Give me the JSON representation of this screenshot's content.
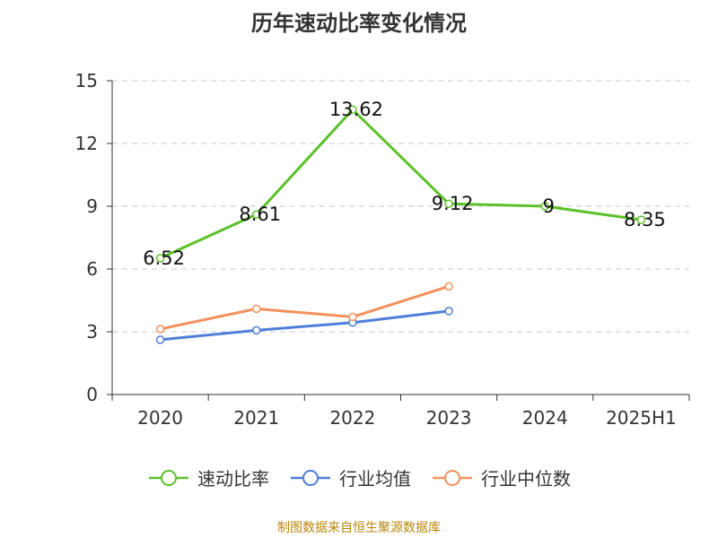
{
  "chart_data": {
    "type": "line",
    "title": "历年速动比率变化情况",
    "categories": [
      "2020",
      "2021",
      "2022",
      "2023",
      "2024",
      "2025H1"
    ],
    "ylim": [
      0,
      15
    ],
    "yticks": [
      "0",
      "3",
      "6",
      "9",
      "12",
      "15"
    ],
    "grid": true,
    "legend_position": "bottom",
    "series": [
      {
        "name": "速动比率",
        "color": "#5cc12a",
        "values": [
          6.52,
          8.61,
          13.62,
          9.12,
          9,
          8.35
        ],
        "labels": [
          "6.52",
          "8.61",
          "13.62",
          "9.12",
          "9",
          "8.35"
        ]
      },
      {
        "name": "行业均值",
        "color": "#4e7fd8",
        "values": [
          2.62,
          3.07,
          3.44,
          3.99,
          null,
          null
        ]
      },
      {
        "name": "行业中位数",
        "color": "#f3915d",
        "values": [
          3.13,
          4.1,
          3.71,
          5.17,
          null,
          null
        ]
      }
    ]
  },
  "source": "制图数据来自恒生聚源数据库"
}
